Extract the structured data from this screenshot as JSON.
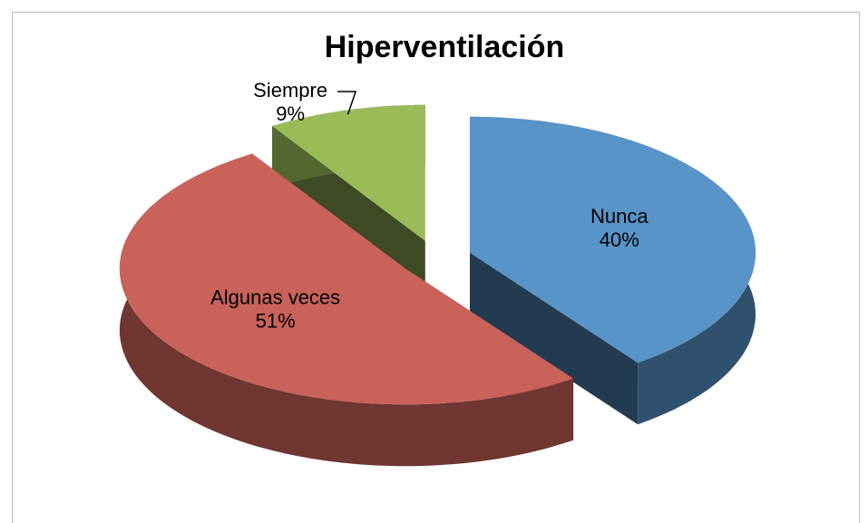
{
  "chart_data": {
    "type": "pie",
    "title": "Hiperventilación",
    "categories": [
      "Nunca",
      "Algunas veces",
      "Siempre"
    ],
    "values": [
      40,
      51,
      9
    ],
    "value_labels": [
      "40%",
      "51%",
      "9%"
    ],
    "colors": [
      "#5894c8",
      "#c9625b",
      "#9bbb59"
    ]
  }
}
